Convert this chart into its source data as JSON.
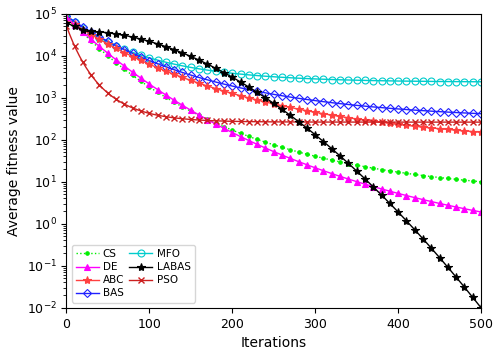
{
  "xlabel": "Iterations",
  "ylabel": "Average fitness value",
  "xlim": [
    0,
    500
  ],
  "ylim_log": [
    -2,
    5
  ],
  "colors": {
    "CS": "#00ee00",
    "ABC": "#ff4040",
    "MFO": "#00cccc",
    "PSO": "#cc2020",
    "DE": "#ff00ff",
    "BAS": "#2020ff",
    "LABAS": "#000000"
  },
  "legend_order": [
    "CS",
    "DE",
    "ABC",
    "BAS",
    "MFO",
    "LABAS",
    "PSO"
  ],
  "figsize": [
    5.0,
    3.57
  ],
  "dpi": 100
}
